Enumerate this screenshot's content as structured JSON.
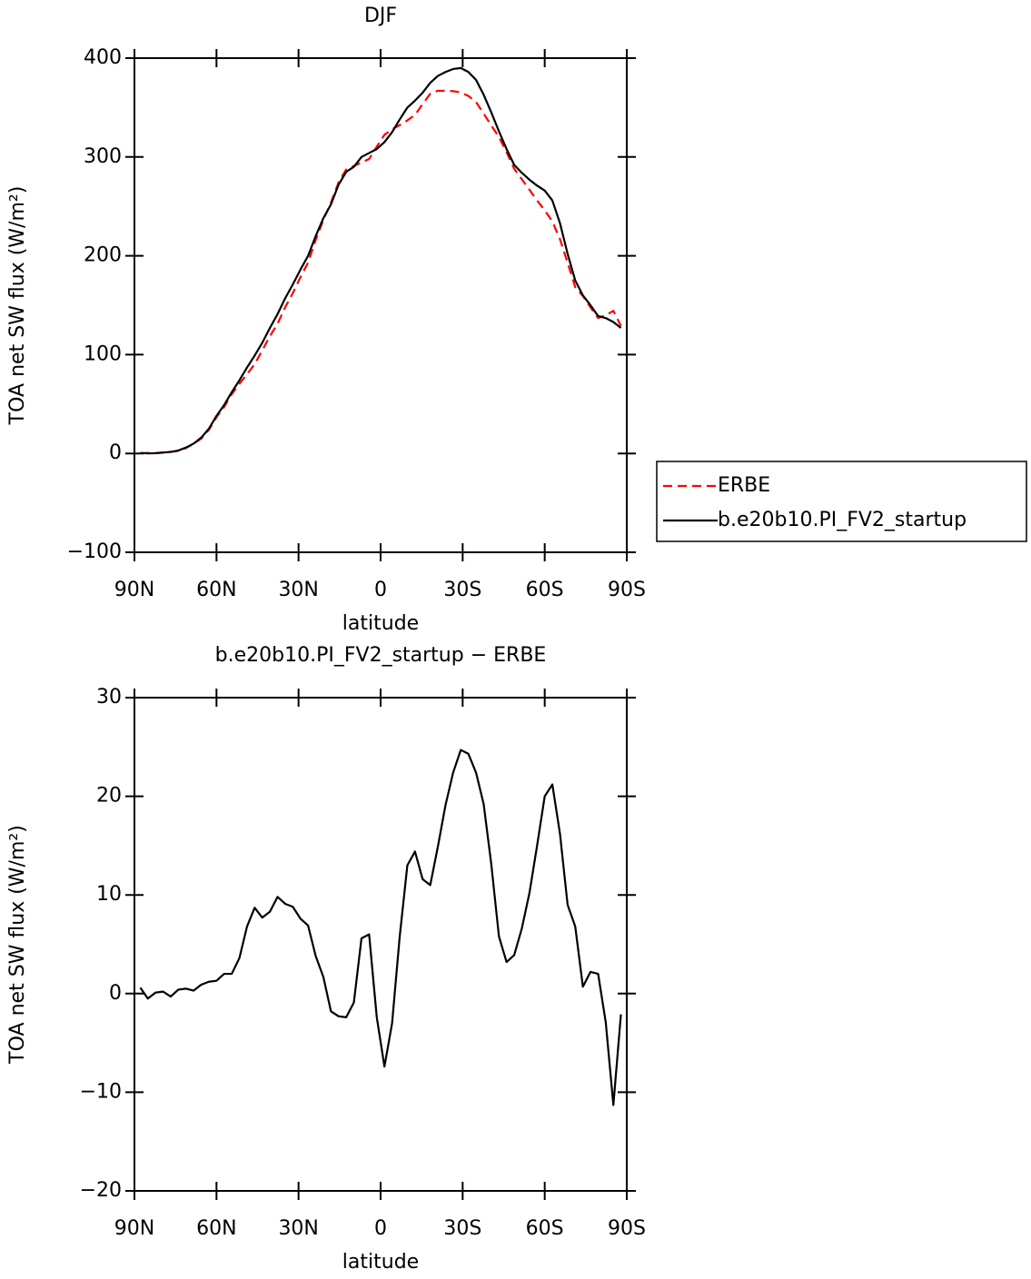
{
  "chart_data": [
    {
      "type": "line",
      "title": "DJF",
      "xlabel": "latitude",
      "ylabel": "TOA net SW flux (W/m²)",
      "x": [
        87.86,
        85.1,
        82.31,
        79.53,
        76.74,
        73.95,
        71.16,
        68.37,
        65.58,
        62.79,
        60.0,
        57.21,
        54.42,
        51.63,
        48.84,
        46.05,
        43.26,
        40.47,
        37.68,
        34.89,
        32.1,
        29.31,
        26.52,
        23.73,
        20.94,
        18.15,
        15.36,
        12.57,
        9.78,
        6.99,
        4.2,
        1.4,
        -1.4,
        -4.2,
        -6.99,
        -9.78,
        -12.57,
        -15.36,
        -18.15,
        -20.94,
        -23.73,
        -26.52,
        -29.31,
        -32.1,
        -34.89,
        -37.68,
        -40.47,
        -43.26,
        -46.05,
        -48.84,
        -51.63,
        -54.42,
        -57.21,
        -60.0,
        -62.79,
        -65.58,
        -68.37,
        -71.16,
        -73.95,
        -76.74,
        -79.53,
        -82.31,
        -85.1,
        -87.86
      ],
      "series": [
        {
          "name": "ERBE",
          "color": "#ff0000",
          "linestyle": "dashed",
          "values": [
            0,
            0.5,
            0.2,
            0.8,
            1.8,
            2.6,
            5.5,
            9.7,
            15.1,
            23.8,
            36.7,
            47,
            60,
            70.4,
            80.2,
            90.3,
            104.3,
            118.7,
            131.2,
            147.9,
            162.2,
            178.4,
            193.1,
            216.2,
            236.3,
            253.8,
            274.3,
            287.4,
            290.9,
            294.4,
            298,
            310.4,
            322.4,
            328,
            332.2,
            337,
            342.6,
            353.4,
            364,
            367.1,
            366.9,
            366.6,
            365.3,
            361.7,
            355.6,
            343.8,
            331.9,
            320.2,
            304.8,
            288.1,
            277.4,
            266.8,
            256,
            246,
            234.8,
            216.8,
            193,
            168.2,
            159.3,
            147.8,
            137,
            139.9,
            144.3,
            129.1
          ]
        },
        {
          "name": "b.e20b10.PI_FV2_startup",
          "color": "#000000",
          "linestyle": "solid",
          "values": [
            0.6,
            0,
            0.3,
            1,
            1.5,
            3,
            6,
            10,
            16,
            25,
            38,
            49,
            62,
            74,
            87,
            99,
            112,
            127,
            141,
            157,
            171,
            186,
            200,
            220,
            238,
            252,
            272,
            285,
            290,
            300,
            304,
            308,
            315,
            325,
            338,
            350,
            357,
            365,
            375,
            382,
            386,
            389,
            390,
            386,
            378,
            363,
            345,
            326,
            308,
            292,
            284,
            277,
            271,
            266,
            256,
            233,
            202,
            175,
            160,
            150,
            139,
            137,
            133,
            127
          ]
        }
      ],
      "xlim": [
        90,
        -90
      ],
      "xticks": [
        {
          "value": 90,
          "label": "90N"
        },
        {
          "value": 60,
          "label": "60N"
        },
        {
          "value": 30,
          "label": "30N"
        },
        0,
        {
          "value": -30,
          "label": "30S"
        },
        {
          "value": -60,
          "label": "60S"
        },
        {
          "value": -90,
          "label": "90S"
        }
      ],
      "ylim": [
        -100,
        400
      ],
      "yticks": [
        {
          "value": -100,
          "label": "−100"
        },
        0,
        100,
        200,
        300,
        400
      ],
      "legend": "right"
    },
    {
      "type": "line",
      "title": "b.e20b10.PI_FV2_startup − ERBE",
      "xlabel": "latitude",
      "ylabel": "TOA net SW flux (W/m²)",
      "x": [
        87.86,
        85.1,
        82.31,
        79.53,
        76.74,
        73.95,
        71.16,
        68.37,
        65.58,
        62.79,
        60.0,
        57.21,
        54.42,
        51.63,
        48.84,
        46.05,
        43.26,
        40.47,
        37.68,
        34.89,
        32.1,
        29.31,
        26.52,
        23.73,
        20.94,
        18.15,
        15.36,
        12.57,
        9.78,
        6.99,
        4.2,
        1.4,
        -1.4,
        -4.2,
        -6.99,
        -9.78,
        -12.57,
        -15.36,
        -18.15,
        -20.94,
        -23.73,
        -26.52,
        -29.31,
        -32.1,
        -34.89,
        -37.68,
        -40.47,
        -43.26,
        -46.05,
        -48.84,
        -51.63,
        -54.42,
        -57.21,
        -60.0,
        -62.79,
        -65.58,
        -68.37,
        -71.16,
        -73.95,
        -76.74,
        -79.53,
        -82.31,
        -85.1,
        -87.86
      ],
      "color": "#000000",
      "values": [
        0.6,
        -0.5,
        0.1,
        0.2,
        -0.3,
        0.4,
        0.5,
        0.3,
        0.9,
        1.2,
        1.3,
        2.0,
        2.0,
        3.6,
        6.8,
        8.7,
        7.7,
        8.3,
        9.8,
        9.1,
        8.8,
        7.6,
        6.9,
        3.8,
        1.7,
        -1.8,
        -2.3,
        -2.4,
        -0.9,
        5.6,
        6.0,
        -2.4,
        -7.4,
        -3.0,
        5.8,
        13.0,
        14.4,
        11.6,
        11.0,
        14.9,
        19.1,
        22.4,
        24.7,
        24.3,
        22.4,
        19.2,
        13.1,
        5.8,
        3.2,
        3.9,
        6.6,
        10.2,
        15.0,
        20.0,
        21.2,
        16.2,
        9.0,
        6.8,
        0.7,
        2.2,
        2.0,
        -2.9,
        -11.3,
        -2.1
      ],
      "xlim": [
        90,
        -90
      ],
      "xticks": [
        {
          "value": 90,
          "label": "90N"
        },
        {
          "value": 60,
          "label": "60N"
        },
        {
          "value": 30,
          "label": "30N"
        },
        0,
        {
          "value": -30,
          "label": "30S"
        },
        {
          "value": -60,
          "label": "60S"
        },
        {
          "value": -90,
          "label": "90S"
        }
      ],
      "ylim": [
        -20,
        30
      ],
      "yticks": [
        {
          "value": -20,
          "label": "−20"
        },
        {
          "value": -10,
          "label": "−10"
        },
        0,
        10,
        20,
        30
      ]
    }
  ]
}
